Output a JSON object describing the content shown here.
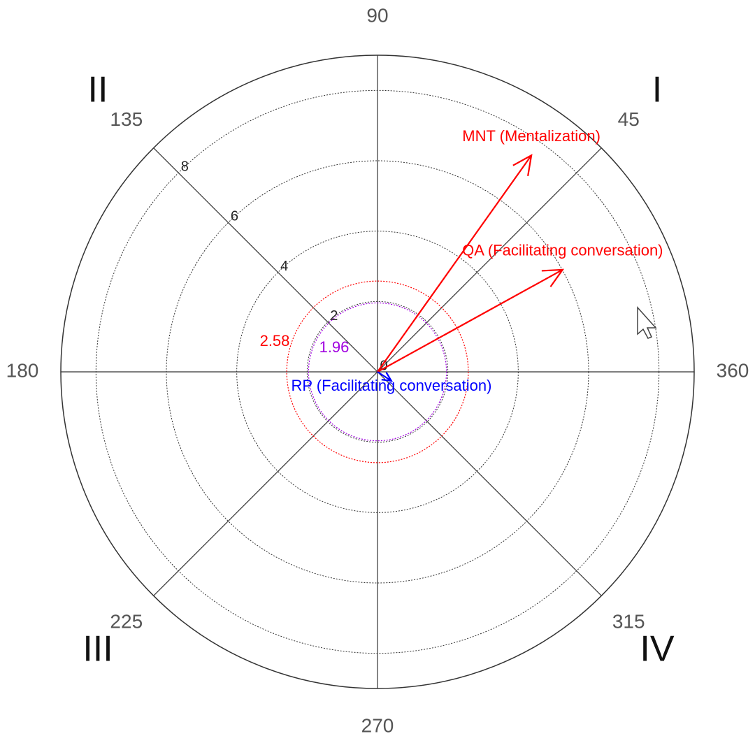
{
  "chart_data": {
    "type": "polar",
    "rlim": [
      0,
      9
    ],
    "rticks": [
      0,
      2,
      4,
      6,
      8
    ],
    "angle_ticks": [
      45,
      90,
      135,
      180,
      225,
      270,
      315,
      360
    ],
    "quadrants": [
      "I",
      "II",
      "III",
      "IV"
    ],
    "thresholds": [
      {
        "value": 2.58,
        "color": "#ff0000"
      },
      {
        "value": 1.96,
        "color": "#a000e0"
      }
    ],
    "series": [
      {
        "name": "MNT (Mentalization)",
        "color": "#ff0000",
        "angle": 54.6,
        "magnitude": 7.55
      },
      {
        "name": "QA (Facilitating conversation)",
        "color": "#ff0000",
        "angle": 28.9,
        "magnitude": 6.01
      },
      {
        "name": "RP (Facilitating conversation)",
        "color": "#0000ff",
        "angle": 327,
        "magnitude": 0.47
      }
    ]
  }
}
